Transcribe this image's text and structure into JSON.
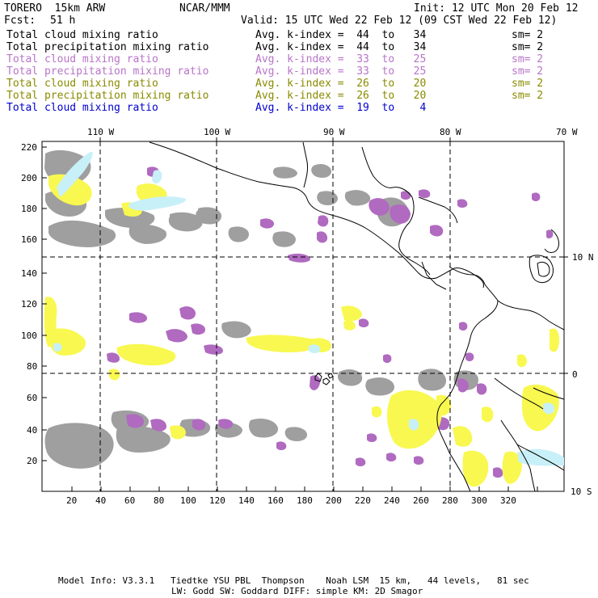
{
  "header": {
    "model": "TORERO  15km ARW",
    "org": "NCAR/MMM",
    "init": "Init: 12 UTC Mon 20 Feb 12",
    "fcst_label": "Fcst:",
    "fcst_value": "51 h",
    "valid": "Valid: 15 UTC Wed 22 Feb 12 (09 CST Wed 22 Feb 12)"
  },
  "legend": [
    {
      "field": "Total cloud mixing ratio",
      "index": "Avg. k-index =  44  to   34",
      "sm": "sm= 2",
      "color": "#000000"
    },
    {
      "field": "Total precipitation mixing ratio",
      "index": "Avg. k-index =  44  to   34",
      "sm": "sm= 2",
      "color": "#000000"
    },
    {
      "field": "Total cloud mixing ratio",
      "index": "Avg. k-index =  33  to   25",
      "sm": "sm= 2",
      "color": "#b874c8"
    },
    {
      "field": "Total precipitation mixing ratio",
      "index": "Avg. k-index =  33  to   25",
      "sm": "sm= 2",
      "color": "#b874c8"
    },
    {
      "field": "Total cloud mixing ratio",
      "index": "Avg. k-index =  26  to   20",
      "sm": "sm= 2",
      "color": "#8a8a00"
    },
    {
      "field": "Total precipitation mixing ratio",
      "index": "Avg. k-index =  26  to   20",
      "sm": "sm= 2",
      "color": "#8a8a00"
    },
    {
      "field": "Total cloud mixing ratio",
      "index": "Avg. k-index =  19  to    4",
      "sm": "",
      "color": "#0000d0"
    }
  ],
  "map": {
    "lon_labels": [
      "110 W",
      "100 W",
      "90 W",
      "80 W",
      "70 W"
    ],
    "lat_labels": [
      "10 N",
      "0",
      "10 S"
    ],
    "y_ticks": [
      "220",
      "200",
      "180",
      "160",
      "140",
      "120",
      "100",
      "80",
      "60",
      "40",
      "20"
    ],
    "x_ticks": [
      "20",
      "40",
      "60",
      "80",
      "100",
      "120",
      "140",
      "160",
      "180",
      "200",
      "220",
      "240",
      "260",
      "280",
      "300",
      "320"
    ],
    "colors": {
      "gray": "#9a9a9a",
      "purple": "#b06ac0",
      "yellow": "#f8f850",
      "lightblue": "#c8f0f8",
      "coast": "#000000"
    }
  },
  "footer": {
    "line1": "Model Info: V3.3.1   Tiedtke YSU PBL  Thompson    Noah LSM  15 km,   44 levels,   81 sec",
    "line2": "LW: Godd SW: Goddard DIFF: simple KM: 2D Smagor"
  }
}
